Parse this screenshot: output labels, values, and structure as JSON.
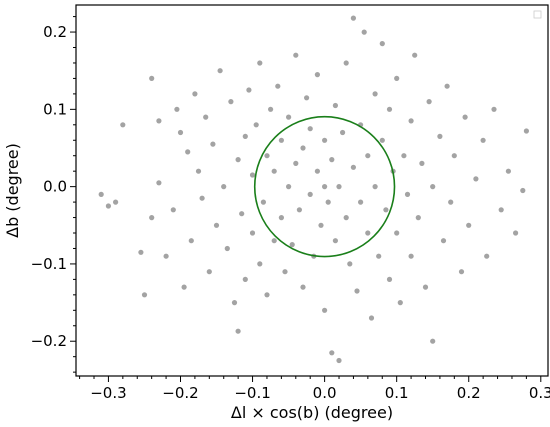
{
  "chart_data": {
    "type": "scatter",
    "xlabel": "Δl × cos(b) (degree)",
    "ylabel": "Δb (degree)",
    "xlim": [
      -0.345,
      0.31
    ],
    "ylim": [
      -0.245,
      0.235
    ],
    "xticks": [
      -0.3,
      -0.2,
      -0.1,
      0.0,
      0.1,
      0.2,
      0.3
    ],
    "xtick_labels": [
      "−0.3",
      "−0.2",
      "−0.1",
      "0.0",
      "0.1",
      "0.2",
      "0.3"
    ],
    "yticks": [
      -0.2,
      -0.1,
      0.0,
      0.1,
      0.2
    ],
    "ytick_labels": [
      "−0.2",
      "−0.1",
      "0.0",
      "0.1",
      "0.2"
    ],
    "grid": false,
    "legend": "top-right (empty)",
    "colors": {
      "points": "#8c8c8c",
      "circle": "#1a7f1a"
    },
    "circle": {
      "center": [
        0.0,
        0.0
      ],
      "radius": 0.097
    },
    "series": [
      {
        "points": [
          [
            -0.31,
            -0.01
          ],
          [
            -0.3,
            -0.025
          ],
          [
            -0.29,
            -0.02
          ],
          [
            -0.28,
            0.08
          ],
          [
            -0.255,
            -0.085
          ],
          [
            -0.25,
            -0.14
          ],
          [
            -0.24,
            0.14
          ],
          [
            -0.24,
            -0.04
          ],
          [
            -0.23,
            0.085
          ],
          [
            -0.23,
            0.005
          ],
          [
            -0.22,
            -0.09
          ],
          [
            -0.21,
            -0.03
          ],
          [
            -0.205,
            0.1
          ],
          [
            -0.2,
            0.07
          ],
          [
            -0.195,
            -0.13
          ],
          [
            -0.19,
            0.045
          ],
          [
            -0.185,
            -0.07
          ],
          [
            -0.18,
            0.12
          ],
          [
            -0.175,
            0.02
          ],
          [
            -0.17,
            -0.015
          ],
          [
            -0.165,
            0.09
          ],
          [
            -0.16,
            -0.11
          ],
          [
            -0.155,
            0.055
          ],
          [
            -0.15,
            -0.05
          ],
          [
            -0.145,
            0.15
          ],
          [
            -0.14,
            0.0
          ],
          [
            -0.135,
            -0.08
          ],
          [
            -0.13,
            0.11
          ],
          [
            -0.125,
            -0.15
          ],
          [
            -0.12,
            -0.187
          ],
          [
            -0.12,
            0.035
          ],
          [
            -0.115,
            -0.035
          ],
          [
            -0.11,
            0.065
          ],
          [
            -0.11,
            -0.12
          ],
          [
            -0.105,
            0.125
          ],
          [
            -0.1,
            0.015
          ],
          [
            -0.1,
            -0.06
          ],
          [
            -0.095,
            0.08
          ],
          [
            -0.09,
            -0.1
          ],
          [
            -0.09,
            0.16
          ],
          [
            -0.085,
            -0.02
          ],
          [
            -0.08,
            0.04
          ],
          [
            -0.08,
            -0.14
          ],
          [
            -0.075,
            0.1
          ],
          [
            -0.07,
            -0.07
          ],
          [
            -0.07,
            0.02
          ],
          [
            -0.065,
            0.13
          ],
          [
            -0.06,
            -0.04
          ],
          [
            -0.06,
            0.06
          ],
          [
            -0.055,
            -0.11
          ],
          [
            -0.05,
            0.0
          ],
          [
            -0.05,
            0.09
          ],
          [
            -0.045,
            -0.075
          ],
          [
            -0.04,
            0.03
          ],
          [
            -0.04,
            0.17
          ],
          [
            -0.035,
            -0.03
          ],
          [
            -0.03,
            0.05
          ],
          [
            -0.03,
            -0.13
          ],
          [
            -0.025,
            0.115
          ],
          [
            -0.02,
            -0.01
          ],
          [
            -0.02,
            0.075
          ],
          [
            -0.015,
            -0.09
          ],
          [
            -0.01,
            0.02
          ],
          [
            -0.01,
            0.145
          ],
          [
            -0.005,
            -0.05
          ],
          [
            0.0,
            0.0
          ],
          [
            0.0,
            0.06
          ],
          [
            0.0,
            -0.16
          ],
          [
            0.005,
            -0.02
          ],
          [
            0.01,
            0.035
          ],
          [
            0.01,
            -0.215
          ],
          [
            0.015,
            -0.07
          ],
          [
            0.015,
            0.105
          ],
          [
            0.02,
            0.0
          ],
          [
            0.02,
            -0.225
          ],
          [
            0.025,
            0.07
          ],
          [
            0.03,
            -0.04
          ],
          [
            0.03,
            0.16
          ],
          [
            0.035,
            -0.1
          ],
          [
            0.04,
            0.025
          ],
          [
            0.04,
            0.218
          ],
          [
            0.045,
            -0.135
          ],
          [
            0.05,
            0.08
          ],
          [
            0.05,
            -0.02
          ],
          [
            0.055,
            0.2
          ],
          [
            0.06,
            -0.06
          ],
          [
            0.06,
            0.04
          ],
          [
            0.065,
            -0.17
          ],
          [
            0.07,
            0.12
          ],
          [
            0.07,
            0.0
          ],
          [
            0.075,
            -0.09
          ],
          [
            0.08,
            0.06
          ],
          [
            0.08,
            0.185
          ],
          [
            0.085,
            -0.03
          ],
          [
            0.09,
            0.1
          ],
          [
            0.09,
            -0.12
          ],
          [
            0.095,
            0.02
          ],
          [
            0.1,
            -0.06
          ],
          [
            0.1,
            0.14
          ],
          [
            0.105,
            -0.15
          ],
          [
            0.11,
            0.04
          ],
          [
            0.115,
            -0.01
          ],
          [
            0.12,
            0.085
          ],
          [
            0.12,
            -0.09
          ],
          [
            0.125,
            0.17
          ],
          [
            0.13,
            -0.04
          ],
          [
            0.135,
            0.03
          ],
          [
            0.14,
            -0.13
          ],
          [
            0.145,
            0.11
          ],
          [
            0.15,
            -0.2
          ],
          [
            0.15,
            0.0
          ],
          [
            0.16,
            0.065
          ],
          [
            0.165,
            -0.07
          ],
          [
            0.17,
            0.13
          ],
          [
            0.175,
            -0.02
          ],
          [
            0.18,
            0.04
          ],
          [
            0.19,
            -0.11
          ],
          [
            0.195,
            0.09
          ],
          [
            0.2,
            -0.05
          ],
          [
            0.21,
            0.01
          ],
          [
            0.22,
            0.06
          ],
          [
            0.225,
            -0.09
          ],
          [
            0.235,
            0.1
          ],
          [
            0.245,
            -0.03
          ],
          [
            0.255,
            0.02
          ],
          [
            0.265,
            -0.06
          ],
          [
            0.275,
            -0.005
          ],
          [
            0.28,
            0.072
          ]
        ]
      }
    ]
  }
}
